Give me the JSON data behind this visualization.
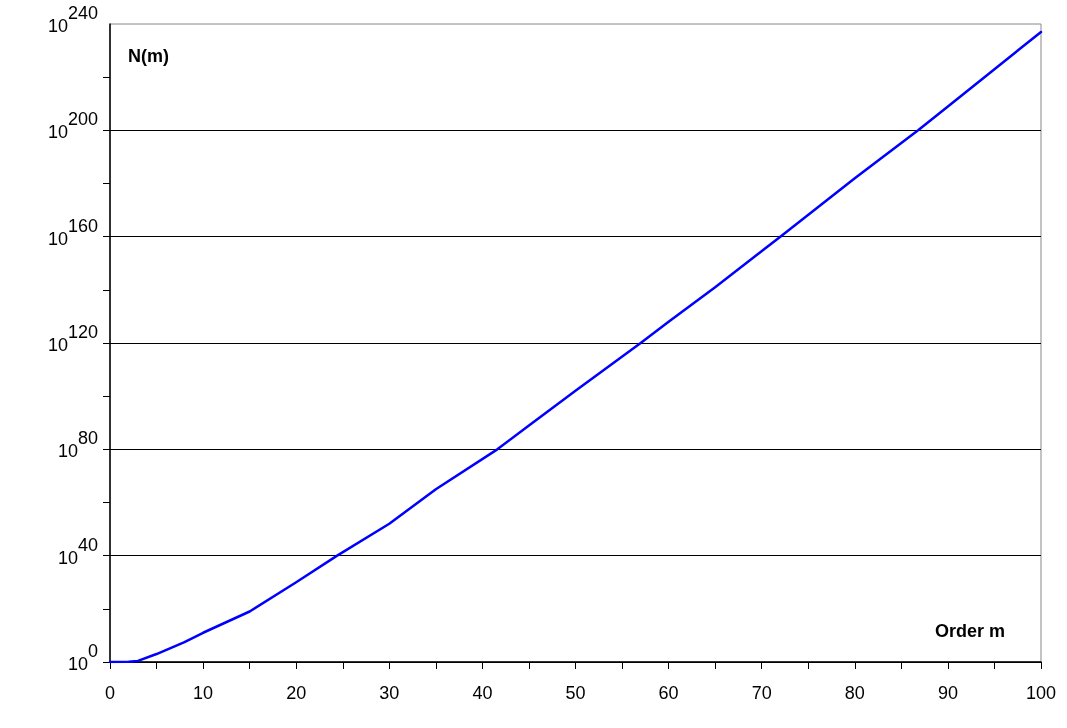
{
  "chart_data": {
    "type": "line",
    "xlabel": "Order m",
    "ylabel": "N(m)",
    "x": [
      0,
      2,
      3,
      5,
      8,
      10,
      15,
      20,
      24.4,
      30,
      35,
      41.6,
      45,
      50,
      57,
      60,
      65,
      72,
      80,
      86.8,
      90,
      95,
      100
    ],
    "series": [
      {
        "color": "#0000ff",
        "values": [
          1,
          1.3,
          2.5,
          1000.0,
          30000000.0,
          100000000000.0,
          1e+19,
          1e+30,
          1e+40,
          1e+52,
          1e+65,
          1e+80,
          1e+89,
          1e+102,
          1e+120,
          1e+128,
          1e+141,
          1e+160,
          1e+182,
          1e+200,
          1e+209,
          1e+223,
          1e+237
        ]
      }
    ],
    "log": "y",
    "xlim": [
      0,
      100
    ],
    "ylim": [
      1,
      1e+240
    ],
    "xticks": [
      0,
      {
        "value": 5,
        "label": null
      },
      10,
      {
        "value": 15,
        "label": null
      },
      20,
      {
        "value": 25,
        "label": null
      },
      30,
      {
        "value": 35,
        "label": null
      },
      40,
      {
        "value": 45,
        "label": null
      },
      50,
      {
        "value": 55,
        "label": null
      },
      60,
      {
        "value": 65,
        "label": null
      },
      70,
      {
        "value": 75,
        "label": null
      },
      80,
      {
        "value": 85,
        "label": null
      },
      90,
      {
        "value": 95,
        "label": null
      },
      100
    ],
    "yticks": [
      {
        "value": 1,
        "label": "10$^{0}$"
      },
      {
        "value": 1e+20,
        "label": null
      },
      {
        "value": 1e+40,
        "label": "10$^{40}$"
      },
      {
        "value": 1e+60,
        "label": null
      },
      {
        "value": 1e+80,
        "label": "10$^{80}$"
      },
      {
        "value": 1e+100,
        "label": null
      },
      {
        "value": 1e+120,
        "label": "10$^{120}$"
      },
      {
        "value": 1e+140,
        "label": null
      },
      {
        "value": 1e+160,
        "label": "10$^{160}$"
      },
      {
        "value": 1e+180,
        "label": null
      },
      {
        "value": 1e+200,
        "label": "10$^{200}$"
      },
      {
        "value": 1e+220,
        "label": null
      },
      {
        "value": 1e+240,
        "label": "10$^{240}$"
      }
    ],
    "grid": "y",
    "marker": "none",
    "line_style": "solid"
  }
}
